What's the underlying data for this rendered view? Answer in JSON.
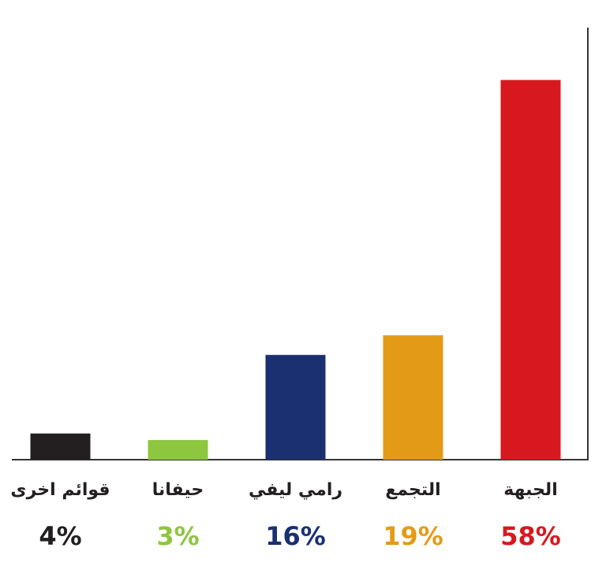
{
  "chart_data": {
    "type": "bar",
    "categories": [
      "قوائم اخرى",
      "حيفانا",
      "رامي ليفي",
      "التجمع",
      "الجبهة"
    ],
    "values": [
      4,
      3,
      16,
      19,
      58
    ],
    "value_labels": [
      "4%",
      "3%",
      "16%",
      "19%",
      "58%"
    ],
    "colors": [
      "#231f20",
      "#8dc63f",
      "#1b3070",
      "#e39b17",
      "#d7191f"
    ],
    "ylim": [
      0,
      66
    ]
  }
}
